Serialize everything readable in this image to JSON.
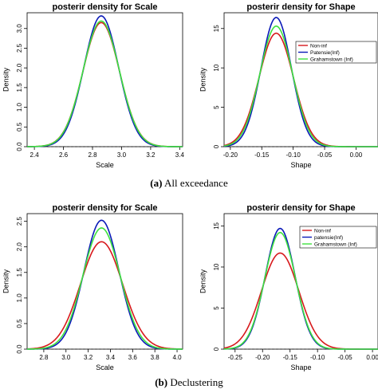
{
  "captions": {
    "a_label": "(a)",
    "a_text": "All exceedance",
    "b_label": "(b)",
    "b_text": "Declustering"
  },
  "colors": {
    "red": "#d7191c",
    "blue": "#0b1ab8",
    "green": "#3ee23e"
  },
  "chart_data": [
    {
      "type": "line",
      "title": "posterir density for Scale",
      "xlabel": "Scale",
      "ylabel": "Density",
      "xlim": [
        2.35,
        3.42
      ],
      "ylim": [
        0,
        3.4
      ],
      "xticks": [
        "2.4",
        "2.6",
        "2.8",
        "3.0",
        "3.2",
        "3.4"
      ],
      "yticks": [
        "0.0",
        "0.5",
        "1.0",
        "1.5",
        "2.0",
        "2.5",
        "3.0"
      ],
      "legend": null,
      "series": [
        {
          "color": "#d7191c",
          "peak_x": 2.86,
          "peak_y": 3.15,
          "sd": 0.126
        },
        {
          "color": "#0b1ab8",
          "peak_x": 2.86,
          "peak_y": 3.32,
          "sd": 0.12
        },
        {
          "color": "#3ee23e",
          "peak_x": 2.86,
          "peak_y": 3.19,
          "sd": 0.125
        }
      ]
    },
    {
      "type": "line",
      "title": "posterir density for Shape",
      "xlabel": "Shape",
      "ylabel": "Density",
      "xlim": [
        -0.21,
        0.035
      ],
      "ylim": [
        0,
        17
      ],
      "xticks": [
        "-0.20",
        "-0.15",
        "-0.10",
        "-0.05",
        "0.00"
      ],
      "yticks": [
        "0",
        "5",
        "10",
        "15"
      ],
      "legend": {
        "placement": "top-right",
        "entries": [
          "Non-inf",
          "Patensie(Inf)",
          "Grahamstown (Inf)"
        ]
      },
      "series": [
        {
          "name": "Non-inf",
          "color": "#d7191c",
          "peak_x": -0.127,
          "peak_y": 14.4,
          "sd": 0.0275
        },
        {
          "name": "Patensie(Inf)",
          "color": "#0b1ab8",
          "peak_x": -0.127,
          "peak_y": 16.4,
          "sd": 0.0243
        },
        {
          "name": "Grahamstown (Inf)",
          "color": "#3ee23e",
          "peak_x": -0.127,
          "peak_y": 15.3,
          "sd": 0.026
        }
      ]
    },
    {
      "type": "line",
      "title": "posterir density for Scale",
      "xlabel": "Scale",
      "ylabel": "Density",
      "xlim": [
        2.65,
        4.05
      ],
      "ylim": [
        0,
        2.65
      ],
      "xticks": [
        "2.8",
        "3.0",
        "3.2",
        "3.4",
        "3.6",
        "3.8",
        "4.0"
      ],
      "yticks": [
        "0.0",
        "0.5",
        "1.0",
        "1.5",
        "2.0",
        "2.5"
      ],
      "legend": null,
      "series": [
        {
          "color": "#d7191c",
          "peak_x": 3.32,
          "peak_y": 2.1,
          "sd": 0.19
        },
        {
          "color": "#0b1ab8",
          "peak_x": 3.32,
          "peak_y": 2.52,
          "sd": 0.158
        },
        {
          "color": "#3ee23e",
          "peak_x": 3.32,
          "peak_y": 2.37,
          "sd": 0.168
        }
      ]
    },
    {
      "type": "line",
      "title": "posterir density for Shape",
      "xlabel": "Shape",
      "ylabel": "Density",
      "xlim": [
        -0.27,
        0.01
      ],
      "ylim": [
        0,
        16.5
      ],
      "xticks": [
        "-0.25",
        "-0.20",
        "-0.15",
        "-0.10",
        "-0.05",
        "0.00"
      ],
      "yticks": [
        "0",
        "5",
        "10",
        "15"
      ],
      "legend": {
        "placement": "top-right",
        "entries": [
          "Non-inf",
          "patensie(Inf)",
          "Grahamstown (Inf)"
        ]
      },
      "series": [
        {
          "name": "Non-inf",
          "color": "#d7191c",
          "peak_x": -0.168,
          "peak_y": 11.7,
          "sd": 0.034
        },
        {
          "name": "patensie(Inf)",
          "color": "#0b1ab8",
          "peak_x": -0.168,
          "peak_y": 14.7,
          "sd": 0.0272
        },
        {
          "name": "Grahamstown (Inf)",
          "color": "#3ee23e",
          "peak_x": -0.168,
          "peak_y": 14.2,
          "sd": 0.028
        }
      ]
    }
  ]
}
